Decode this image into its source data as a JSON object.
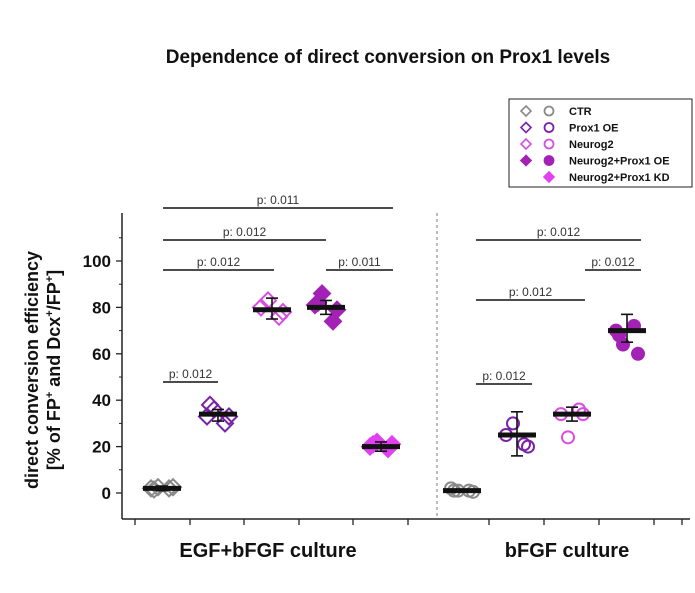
{
  "chart_data": {
    "type": "scatter",
    "title": "Dependence of direct conversion on Prox1 levels",
    "ylabel_line1": "direct conversion efficiency",
    "ylabel_line2_parts": [
      "[% of FP",
      "+",
      " and Dcx",
      "+",
      "/FP",
      "+",
      "]"
    ],
    "ylim": [
      -10,
      120
    ],
    "yticks": [
      "0",
      "20",
      "40",
      "60",
      "80",
      "100"
    ],
    "ytick_values": [
      0,
      20,
      40,
      60,
      80,
      100
    ],
    "groups": [
      "EGF+bFGF culture",
      "bFGF culture"
    ],
    "colors": {
      "CTR": "#8a8a8a",
      "Prox1 OE": "#7b22a8",
      "Neurog2": "#d84fe0",
      "Neurog2+Prox1 OE": "#a321b5",
      "Neurog2+Prox1 KD": "#e040f0"
    },
    "legend": [
      {
        "label": "CTR",
        "diamond": "open",
        "circle": "open",
        "color_key": "CTR"
      },
      {
        "label": "Prox1  OE",
        "diamond": "open",
        "circle": "open",
        "color_key": "Prox1 OE"
      },
      {
        "label": "Neurog2",
        "diamond": "open",
        "circle": "open",
        "color_key": "Neurog2"
      },
      {
        "label": "Neurog2+Prox1 OE",
        "diamond": "filled",
        "circle": "filled",
        "color_key": "Neurog2+Prox1 OE"
      },
      {
        "label": "Neurog2+Prox1 KD",
        "diamond": "filled",
        "circle": "none",
        "color_key": "Neurog2+Prox1 KD"
      }
    ],
    "series": [
      {
        "group": "EGF+bFGF culture",
        "condition": "CTR",
        "marker": "diamond",
        "filled": false,
        "points": [
          2,
          2,
          2.5,
          2.5,
          1.5
        ],
        "median": 2,
        "err": [
          1,
          3
        ]
      },
      {
        "group": "EGF+bFGF culture",
        "condition": "Prox1 OE",
        "marker": "diamond",
        "filled": false,
        "points": [
          33,
          30,
          36,
          33,
          38
        ],
        "median": 34,
        "err": [
          31,
          36
        ]
      },
      {
        "group": "EGF+bFGF culture",
        "condition": "Neurog2",
        "marker": "diamond",
        "filled": false,
        "points": [
          80,
          76,
          83,
          78
        ],
        "median": 79,
        "err": [
          75,
          84
        ]
      },
      {
        "group": "EGF+bFGF culture",
        "condition": "Neurog2+Prox1 OE",
        "marker": "diamond",
        "filled": true,
        "points": [
          81,
          74,
          86,
          79,
          82
        ],
        "median": 80,
        "err": [
          77,
          83
        ]
      },
      {
        "group": "EGF+bFGF culture",
        "condition": "Neurog2+Prox1 KD",
        "marker": "diamond",
        "filled": true,
        "points": [
          20,
          19,
          22,
          21,
          21
        ],
        "median": 20,
        "err": [
          18,
          22
        ]
      },
      {
        "group": "bFGF culture",
        "condition": "CTR",
        "marker": "circle",
        "filled": false,
        "points": [
          2,
          1,
          1,
          0.5,
          1
        ],
        "median": 1,
        "err": [
          0.5,
          1.5
        ]
      },
      {
        "group": "bFGF culture",
        "condition": "Prox1 OE",
        "marker": "circle",
        "filled": false,
        "points": [
          25,
          21,
          30,
          20
        ],
        "median": 25,
        "err": [
          16,
          35
        ]
      },
      {
        "group": "bFGF culture",
        "condition": "Neurog2",
        "marker": "circle",
        "filled": false,
        "points": [
          34,
          36,
          24,
          34
        ],
        "median": 34,
        "err": [
          31,
          37
        ]
      },
      {
        "group": "bFGF culture",
        "condition": "Neurog2+Prox1 OE",
        "marker": "circle",
        "filled": true,
        "points": [
          70,
          72,
          64,
          60,
          68
        ],
        "median": 70,
        "err": [
          65,
          77
        ]
      }
    ],
    "annotations": [
      {
        "text": "p: 0.011",
        "from": "EGF+bFGF culture/CTR",
        "to": "EGF+bFGF culture/Neurog2+Prox1 KD"
      },
      {
        "text": "p: 0.012",
        "from": "EGF+bFGF culture/CTR",
        "to": "EGF+bFGF culture/Neurog2+Prox1 OE"
      },
      {
        "text": "p: 0.012",
        "from": "EGF+bFGF culture/CTR",
        "to": "EGF+bFGF culture/Neurog2"
      },
      {
        "text": "p: 0.011",
        "from": "EGF+bFGF culture/Neurog2+Prox1 OE",
        "to": "EGF+bFGF culture/Neurog2+Prox1 KD"
      },
      {
        "text": "p: 0.012",
        "from": "EGF+bFGF culture/CTR",
        "to": "EGF+bFGF culture/Prox1 OE"
      },
      {
        "text": "p: 0.012",
        "from": "bFGF culture/CTR",
        "to": "bFGF culture/Neurog2+Prox1 OE"
      },
      {
        "text": "p: 0.012",
        "from": "bFGF culture/Neurog2",
        "to": "bFGF culture/Neurog2+Prox1 OE"
      },
      {
        "text": "p: 0.012",
        "from": "bFGF culture/CTR",
        "to": "bFGF culture/Neurog2"
      },
      {
        "text": "p: 0.012",
        "from": "bFGF culture/CTR",
        "to": "bFGF culture/Prox1 OE"
      }
    ]
  }
}
